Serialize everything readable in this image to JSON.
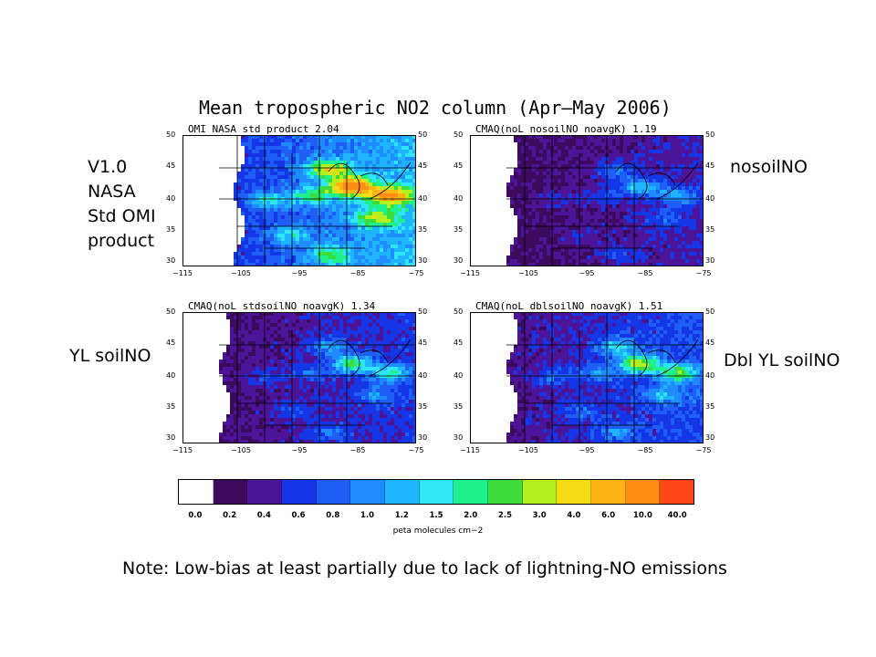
{
  "title": "Mean tropospheric NO2 column (Apr—May 2006)",
  "side_labels": {
    "top_left": [
      "V1.0",
      "NASA",
      "Std OMI",
      "product"
    ],
    "top_right": "nosoilNO",
    "bottom_left": "YL soilNO",
    "bottom_right": "Dbl YL soilNO"
  },
  "panels": [
    {
      "title": "OMI NASA std product 2.04",
      "variant": "omi"
    },
    {
      "title": "CMAQ(noL nosoilNO noavgK) 1.19",
      "variant": "nosoil"
    },
    {
      "title": "CMAQ(noL stdsoilNO noavgK) 1.34",
      "variant": "stdsoil"
    },
    {
      "title": "CMAQ(noL dblsoilNO noavgK) 1.51",
      "variant": "dblsoil"
    }
  ],
  "y_ticks": [
    "50",
    "45",
    "40",
    "35",
    "30"
  ],
  "x_ticks": [
    "−115",
    "−105",
    "−95",
    "−85",
    "−75"
  ],
  "colorbar": {
    "colors": [
      "#ffffff",
      "#3d0a5e",
      "#4b1499",
      "#1436e6",
      "#1e5ef5",
      "#1e8cff",
      "#1eb4ff",
      "#2ee6f5",
      "#1ef08c",
      "#3cdc3c",
      "#b4f01e",
      "#f5dc14",
      "#ffb414",
      "#ff8c14",
      "#ff4614"
    ],
    "labels": [
      "0.0",
      "0.2",
      "0.4",
      "0.6",
      "0.8",
      "1.0",
      "1.2",
      "1.5",
      "2.0",
      "2.5",
      "3.0",
      "4.0",
      "6.0",
      "10.0",
      "40.0"
    ],
    "unit": "peta molecules cm−2"
  },
  "note": "Note: Low-bias at least partially due to lack of lightning-NO emissions"
}
